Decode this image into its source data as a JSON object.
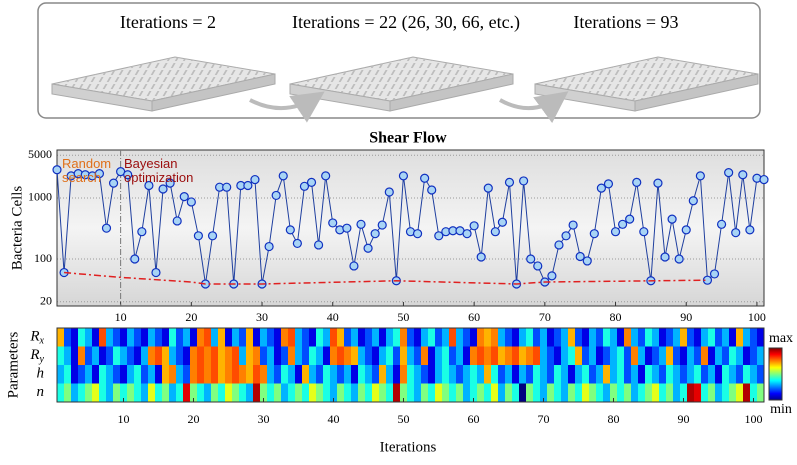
{
  "panel": {
    "labels": [
      "Iterations = 2",
      "Iterations = 22 (26, 30, 66, etc.)",
      "Iterations = 93"
    ]
  },
  "chart_data": [
    {
      "type": "line",
      "title": "Shear Flow",
      "ylabel": "Bacteria Cells",
      "log_y": true,
      "grid": true,
      "annotations": [
        "Random search",
        "Bayesian optimization"
      ],
      "vline": 10,
      "xlim": [
        1,
        101
      ],
      "ylim": [
        17,
        6100
      ],
      "xticks": [
        10,
        20,
        30,
        40,
        50,
        60,
        70,
        80,
        90,
        100
      ],
      "yticks": [
        20,
        100,
        1000,
        5000
      ],
      "x": [
        1,
        2,
        3,
        4,
        5,
        6,
        7,
        8,
        9,
        10,
        11,
        12,
        13,
        14,
        15,
        16,
        17,
        18,
        19,
        20,
        21,
        22,
        23,
        24,
        25,
        26,
        27,
        28,
        29,
        30,
        31,
        32,
        33,
        34,
        35,
        36,
        37,
        38,
        39,
        40,
        41,
        42,
        43,
        44,
        45,
        46,
        47,
        48,
        49,
        50,
        51,
        52,
        53,
        54,
        55,
        56,
        57,
        58,
        59,
        60,
        61,
        62,
        63,
        64,
        65,
        66,
        67,
        68,
        69,
        70,
        71,
        72,
        73,
        74,
        75,
        76,
        77,
        78,
        79,
        80,
        81,
        82,
        83,
        84,
        85,
        86,
        87,
        88,
        89,
        90,
        91,
        92,
        93,
        94,
        95,
        96,
        97,
        98,
        99,
        100,
        101
      ],
      "series": [
        {
          "color": "#1f3f9f",
          "marker": true,
          "values": [
            2900,
            60,
            2300,
            2500,
            2400,
            2300,
            2500,
            320,
            1750,
            2700,
            2400,
            100,
            280,
            1600,
            60,
            1400,
            1750,
            420,
            1050,
            860,
            240,
            39,
            240,
            1500,
            1500,
            39,
            1600,
            1600,
            2000,
            39,
            160,
            1100,
            2300,
            300,
            180,
            1550,
            1800,
            170,
            2300,
            390,
            300,
            320,
            77,
            370,
            150,
            260,
            360,
            1250,
            44,
            2300,
            280,
            260,
            2100,
            1350,
            240,
            280,
            290,
            290,
            260,
            350,
            108,
            1450,
            280,
            400,
            1800,
            39,
            1900,
            100,
            77,
            42,
            53,
            170,
            240,
            360,
            110,
            93,
            260,
            1450,
            1700,
            280,
            370,
            450,
            1800,
            280,
            44,
            1750,
            108,
            450,
            100,
            300,
            900,
            2300,
            45,
            57,
            370,
            2600,
            270,
            2400,
            300,
            2100,
            2000
          ]
        },
        {
          "color": "#e02020",
          "dash": true,
          "marker": false,
          "x": [
            2,
            10,
            20,
            22,
            30,
            49,
            66,
            70,
            93
          ],
          "values": [
            60,
            50,
            42,
            39,
            39,
            44,
            39,
            42,
            45
          ]
        }
      ]
    },
    {
      "type": "heatmap",
      "xlabel": "Iterations",
      "ylabel": "Parameters",
      "colormap": "jet",
      "xlim": [
        0.5,
        101.5
      ],
      "zlim": [
        0,
        1
      ],
      "colorbar_labels": [
        "max",
        "min"
      ],
      "xticks": [
        10,
        20,
        30,
        40,
        50,
        60,
        70,
        80,
        90,
        100
      ],
      "x": [
        1,
        2,
        3,
        4,
        5,
        6,
        7,
        8,
        9,
        10,
        11,
        12,
        13,
        14,
        15,
        16,
        17,
        18,
        19,
        20,
        21,
        22,
        23,
        24,
        25,
        26,
        27,
        28,
        29,
        30,
        31,
        32,
        33,
        34,
        35,
        36,
        37,
        38,
        39,
        40,
        41,
        42,
        43,
        44,
        45,
        46,
        47,
        48,
        49,
        50,
        51,
        52,
        53,
        54,
        55,
        56,
        57,
        58,
        59,
        60,
        61,
        62,
        63,
        64,
        65,
        66,
        67,
        68,
        69,
        70,
        71,
        72,
        73,
        74,
        75,
        76,
        77,
        78,
        79,
        80,
        81,
        82,
        83,
        84,
        85,
        86,
        87,
        88,
        89,
        90,
        91,
        92,
        93,
        94,
        95,
        96,
        97,
        98,
        99,
        100,
        101
      ],
      "rows": [
        {
          "name": "Rx",
          "values": [
            0.7,
            0.2,
            0.1,
            0.4,
            0.3,
            0.1,
            0.8,
            0.3,
            0.2,
            0.1,
            0.3,
            0.2,
            0.1,
            0.3,
            0.2,
            0.1,
            0.4,
            0.2,
            0.3,
            0.1,
            0.75,
            0.8,
            0.3,
            0.7,
            0.1,
            0.3,
            0.2,
            0.7,
            0.1,
            0.3,
            0.2,
            0.1,
            0.75,
            0.8,
            0.3,
            0.2,
            0.1,
            0.4,
            0.3,
            0.8,
            0.7,
            0.2,
            0.3,
            0.1,
            0.2,
            0.3,
            0.1,
            0.3,
            0.4,
            0.75,
            0.2,
            0.1,
            0.3,
            0.4,
            0.2,
            0.3,
            0.8,
            0.3,
            0.2,
            0.1,
            0.75,
            0.7,
            0.75,
            0.3,
            0.2,
            0.1,
            0.3,
            0.4,
            0.2,
            0.3,
            0.1,
            0.2,
            0.3,
            0.7,
            0.2,
            0.1,
            0.3,
            0.2,
            0.4,
            0.3,
            0.1,
            0.75,
            0.3,
            0.2,
            0.4,
            0.3,
            0.1,
            0.2,
            0.3,
            0.7,
            0.2,
            0.1,
            0.3,
            0.4,
            0.2,
            0.3,
            0.1,
            0.7,
            0.3,
            0.2,
            0.1
          ]
        },
        {
          "name": "Ry",
          "values": [
            0.4,
            0.3,
            0.1,
            0.75,
            0.2,
            0.3,
            0.1,
            0.2,
            0.4,
            0.3,
            0.2,
            0.1,
            0.3,
            0.75,
            0.8,
            0.7,
            0.3,
            0.2,
            0.1,
            0.75,
            0.8,
            0.75,
            0.8,
            0.7,
            0.75,
            0.8,
            0.3,
            0.7,
            0.75,
            0.2,
            0.3,
            0.1,
            0.2,
            0.75,
            0.3,
            0.2,
            0.4,
            0.3,
            0.1,
            0.75,
            0.8,
            0.75,
            0.7,
            0.3,
            0.2,
            0.1,
            0.3,
            0.4,
            0.2,
            0.7,
            0.3,
            0.2,
            0.75,
            0.1,
            0.3,
            0.4,
            0.2,
            0.3,
            0.1,
            0.75,
            0.8,
            0.75,
            0.8,
            0.7,
            0.75,
            0.8,
            0.7,
            0.75,
            0.8,
            0.3,
            0.2,
            0.1,
            0.3,
            0.4,
            0.7,
            0.2,
            0.3,
            0.1,
            0.2,
            0.3,
            0.4,
            0.2,
            0.75,
            0.3,
            0.1,
            0.2,
            0.3,
            0.7,
            0.2,
            0.1,
            0.3,
            0.2,
            0.75,
            0.1,
            0.3,
            0.2,
            0.4,
            0.3,
            0.1,
            0.2,
            0.3
          ]
        },
        {
          "name": "h",
          "values": [
            0.3,
            0.4,
            0.1,
            0.2,
            0.3,
            0.1,
            0.4,
            0.3,
            0.2,
            0.1,
            0.3,
            0.4,
            0.2,
            0.3,
            0.1,
            0.7,
            0.75,
            0.3,
            0.2,
            0.75,
            0.8,
            0.75,
            0.8,
            0.7,
            0.75,
            0.8,
            0.75,
            0.7,
            0.8,
            0.75,
            0.3,
            0.2,
            0.4,
            0.3,
            0.1,
            0.7,
            0.3,
            0.2,
            0.4,
            0.3,
            0.2,
            0.3,
            0.1,
            0.4,
            0.3,
            0.2,
            0.7,
            0.3,
            0.1,
            0.75,
            0.4,
            0.3,
            0.2,
            0.1,
            0.3,
            0.4,
            0.3,
            0.2,
            0.3,
            0.4,
            0.3,
            0.7,
            0.4,
            0.2,
            0.3,
            0.1,
            0.3,
            0.2,
            0.4,
            0.3,
            0.2,
            0.4,
            0.3,
            0.1,
            0.3,
            0.4,
            0.2,
            0.3,
            0.7,
            0.3,
            0.4,
            0.2,
            0.3,
            0.1,
            0.4,
            0.3,
            0.2,
            0.4,
            0.3,
            0.2,
            0.3,
            0.4,
            0.2,
            0.3,
            0.1,
            0.4,
            0.3,
            0.2,
            0.4,
            0.3,
            0.2
          ]
        },
        {
          "name": "n",
          "values": [
            0.4,
            0.5,
            0.3,
            0.4,
            0.5,
            0.6,
            0.4,
            0.3,
            0.5,
            0.4,
            0.5,
            0.4,
            0.3,
            0.6,
            0.4,
            0.5,
            0.3,
            0.4,
            0.9,
            0.5,
            0.4,
            0.3,
            0.5,
            0.4,
            0.6,
            0.5,
            0.4,
            0.3,
            0.95,
            0.5,
            0.4,
            0.5,
            0.3,
            0.4,
            0.5,
            0.4,
            0.6,
            0.5,
            0.4,
            0.3,
            0.5,
            0.4,
            0.3,
            0.5,
            0.4,
            0.6,
            0.5,
            0.4,
            0.95,
            0.5,
            0.4,
            0.3,
            0.5,
            0.4,
            0.6,
            0.5,
            0.4,
            0.5,
            0.3,
            0.4,
            0.5,
            0.4,
            0.6,
            0.3,
            0.5,
            0.4,
            0.0,
            0.5,
            0.4,
            0.3,
            0.5,
            0.4,
            0.3,
            0.5,
            0.4,
            0.6,
            0.5,
            0.4,
            0.3,
            0.5,
            0.4,
            0.5,
            0.3,
            0.4,
            0.5,
            0.6,
            0.4,
            0.5,
            0.3,
            0.4,
            0.95,
            0.9,
            0.4,
            0.5,
            0.3,
            0.4,
            0.5,
            0.6,
            0.95,
            0.4,
            0.5
          ]
        }
      ]
    }
  ]
}
